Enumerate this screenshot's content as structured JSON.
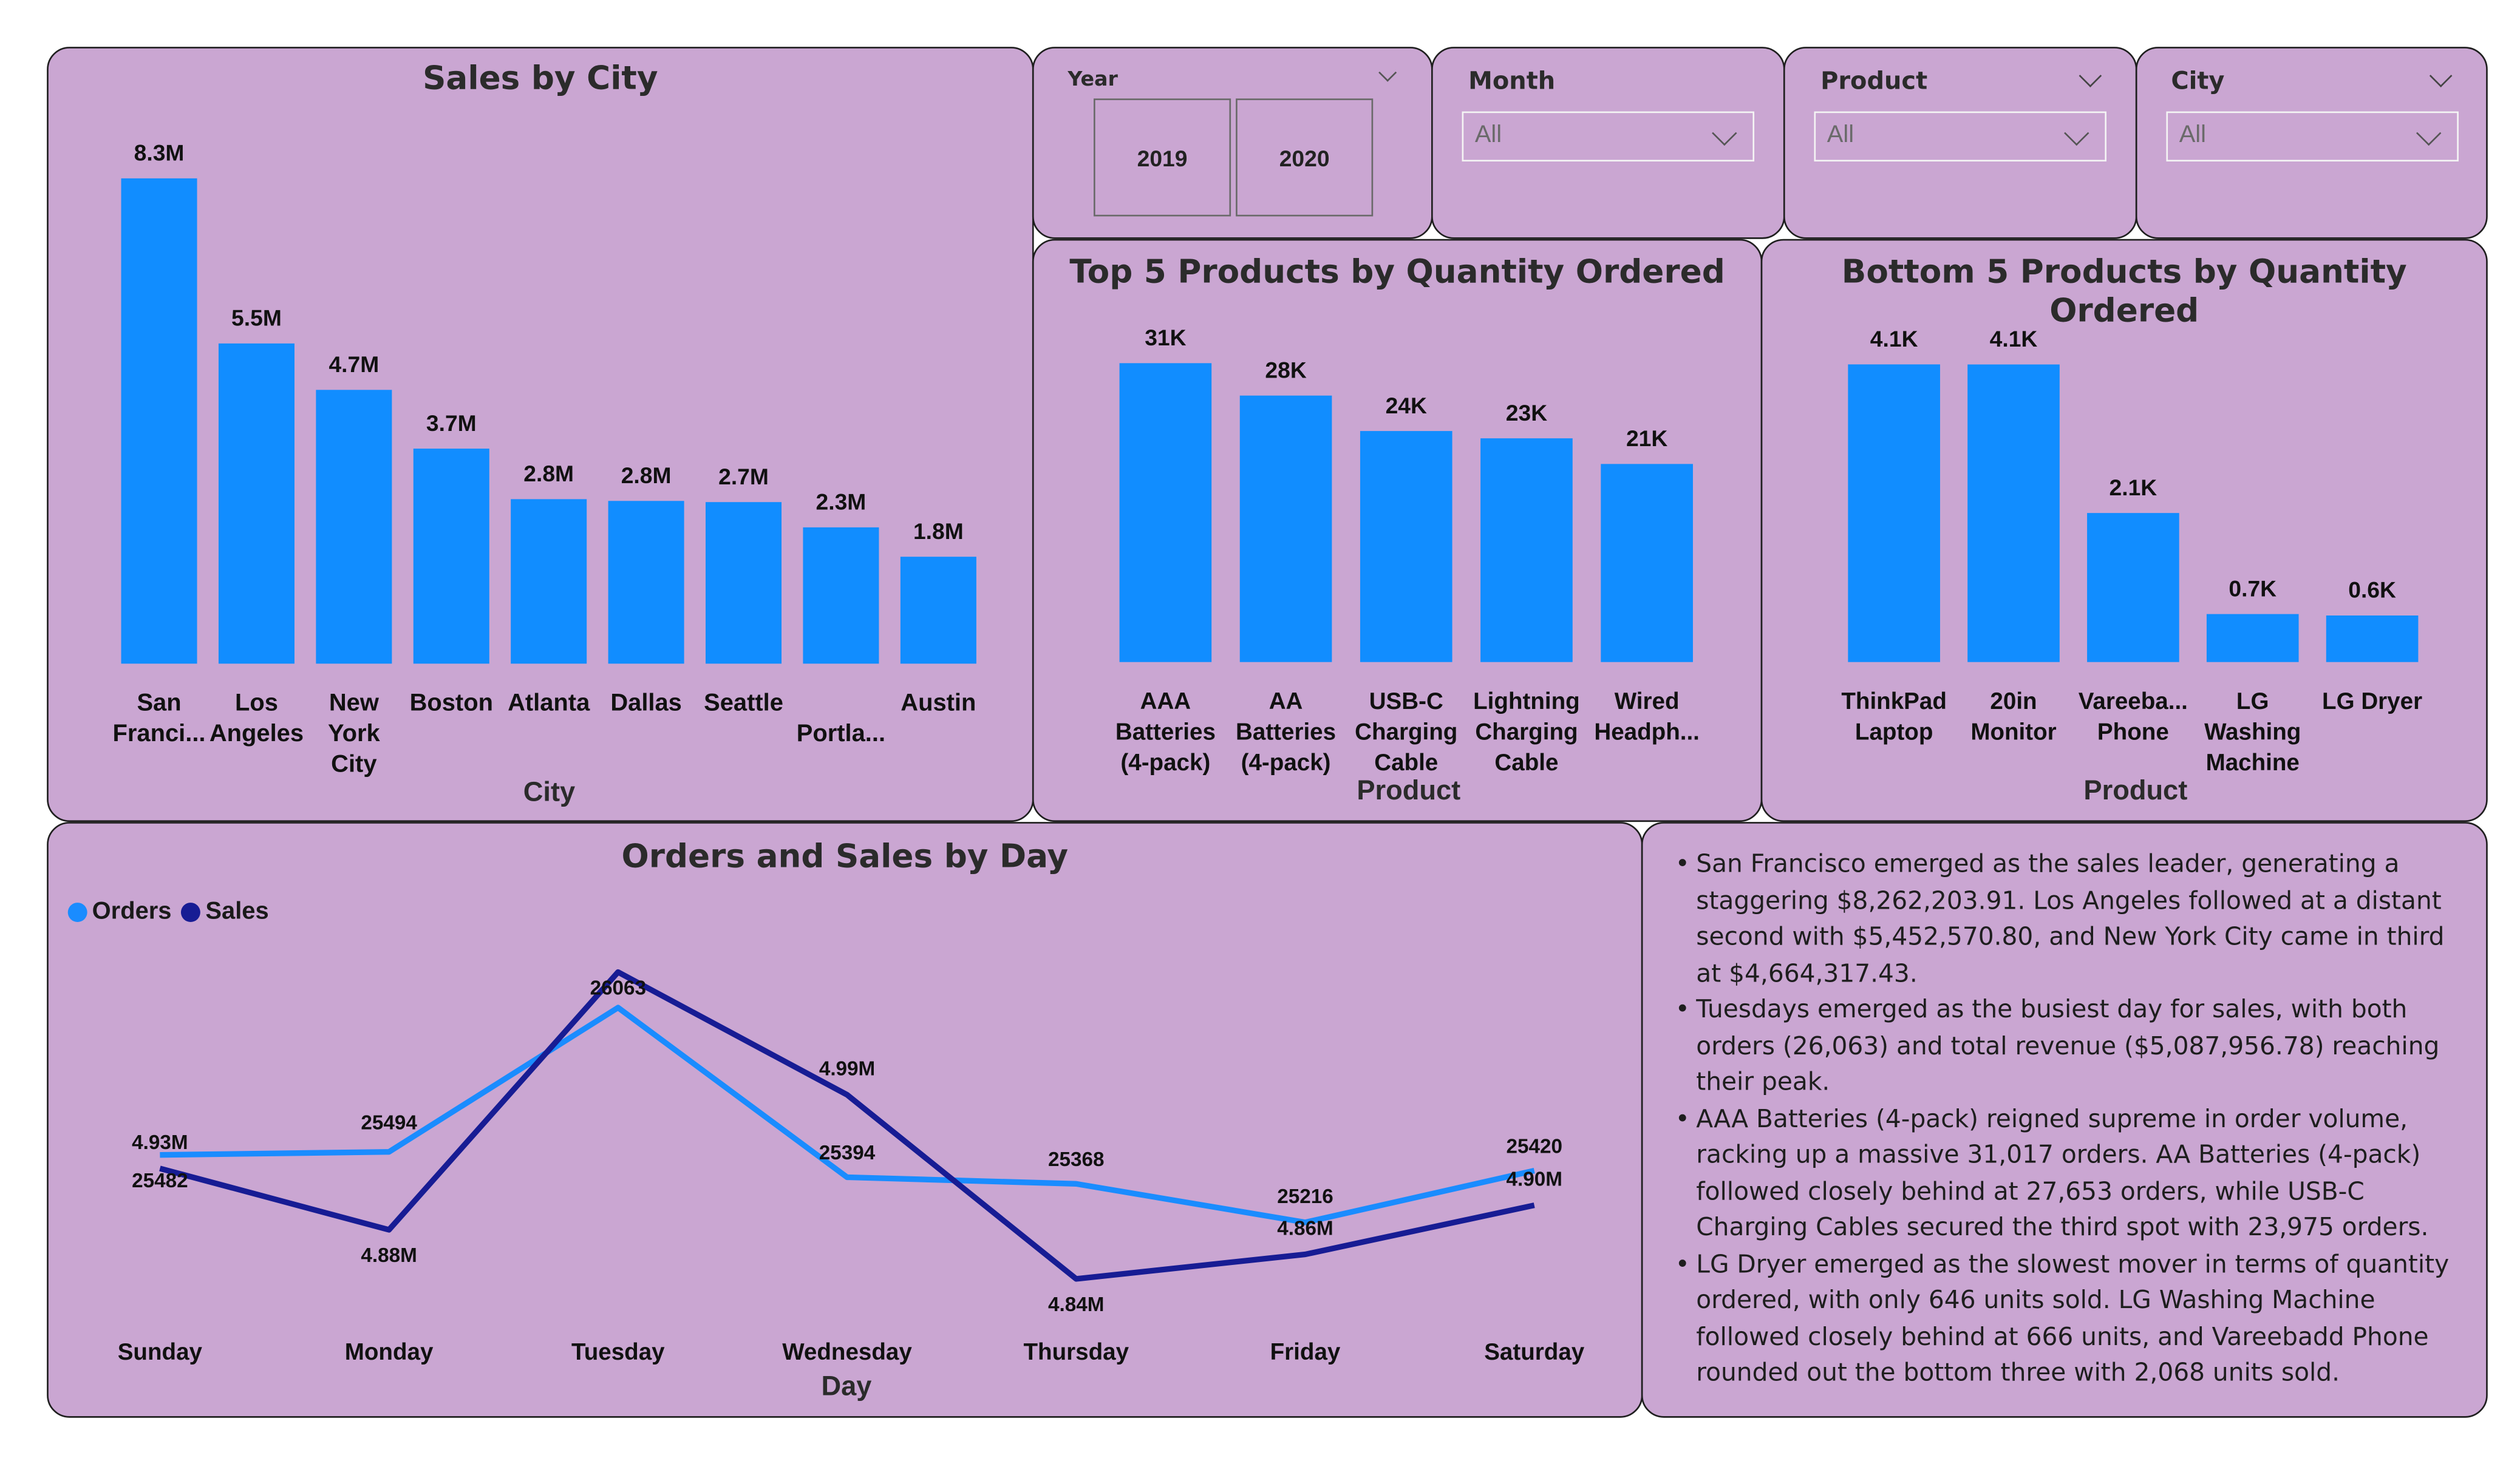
{
  "colors": {
    "bar": "#118dff",
    "orders_line": "#1a8cff",
    "sales_line": "#171c94",
    "panel_bg": "#caa6d2"
  },
  "slicers": {
    "year": {
      "label": "Year",
      "options": [
        "2019",
        "2020"
      ],
      "icon": "chevron-down-icon"
    },
    "month": {
      "label": "Month",
      "value": "All"
    },
    "product": {
      "label": "Product",
      "value": "All"
    },
    "city": {
      "label": "City",
      "value": "All"
    }
  },
  "chart_data": [
    {
      "id": "city",
      "type": "bar",
      "title": "Sales by City",
      "xlabel": "City",
      "ylabel": "",
      "ylim": [
        0,
        8.3
      ],
      "categories": [
        [
          "San",
          "Franci..."
        ],
        [
          "Los",
          "Angeles"
        ],
        [
          "New",
          "York",
          "City"
        ],
        [
          "Boston"
        ],
        [
          "Atlanta"
        ],
        [
          "Dallas"
        ],
        [
          "Seattle"
        ],
        [
          "",
          "Portla..."
        ],
        [
          "Austin"
        ]
      ],
      "values": [
        8.26,
        5.45,
        4.66,
        3.66,
        2.8,
        2.77,
        2.75,
        2.32,
        1.82
      ],
      "data_labels": [
        "8.3M",
        "5.5M",
        "4.7M",
        "3.7M",
        "2.8M",
        "2.8M",
        "2.7M",
        "2.3M",
        "1.8M"
      ]
    },
    {
      "id": "top5",
      "type": "bar",
      "title": "Top 5 Products by Quantity Ordered",
      "xlabel": "Product",
      "ylabel": "",
      "ylim": [
        0,
        31
      ],
      "categories": [
        [
          "AAA",
          "Batteries",
          "(4-pack)"
        ],
        [
          "AA",
          "Batteries",
          "(4-pack)"
        ],
        [
          "USB-C",
          "Charging",
          "Cable"
        ],
        [
          "Lightning",
          "Charging",
          "Cable"
        ],
        [
          "Wired",
          "Headph..."
        ]
      ],
      "values": [
        31017,
        27653,
        23975,
        23217,
        20557
      ],
      "data_labels": [
        "31K",
        "28K",
        "24K",
        "23K",
        "21K"
      ]
    },
    {
      "id": "bottom5",
      "type": "bar",
      "title": "Bottom 5 Products by Quantity Ordered",
      "xlabel": "Product",
      "ylabel": "",
      "ylim": [
        0,
        4.1
      ],
      "categories": [
        [
          "ThinkPad",
          "Laptop"
        ],
        [
          "20in",
          "Monitor"
        ],
        [
          "Vareeba...",
          "Phone"
        ],
        [
          "LG",
          "Washing",
          "Machine"
        ],
        [
          "LG Dryer"
        ]
      ],
      "values": [
        4130,
        4129,
        2068,
        666,
        646
      ],
      "data_labels": [
        "4.1K",
        "4.1K",
        "2.1K",
        "0.7K",
        "0.6K"
      ]
    },
    {
      "id": "day",
      "type": "line",
      "title": "Orders and Sales by Day",
      "xlabel": "Day",
      "x": [
        "Sunday",
        "Monday",
        "Tuesday",
        "Wednesday",
        "Thursday",
        "Friday",
        "Saturday"
      ],
      "series": [
        {
          "name": "Orders",
          "values": [
            25482,
            25494,
            26063,
            25394,
            25368,
            25216,
            25420
          ],
          "data_labels": [
            "25482",
            "25494",
            "26063",
            "25394",
            "25368",
            "25216",
            "25420"
          ]
        },
        {
          "name": "Sales",
          "values": [
            4.93,
            4.88,
            5.09,
            4.99,
            4.84,
            4.86,
            4.9
          ],
          "data_labels": [
            "4.93M",
            "4.88M",
            "",
            "4.99M",
            "4.84M",
            "4.86M",
            "4.90M"
          ]
        }
      ]
    }
  ],
  "notes": [
    "San Francisco emerged as the sales leader, generating a staggering $8,262,203.91. Los Angeles followed at a distant second with $5,452,570.80, and New York City came in third at $4,664,317.43.",
    "Tuesdays emerged as the busiest day for sales, with both orders (26,063) and total revenue ($5,087,956.78) reaching their peak.",
    "AAA Batteries (4-pack) reigned supreme in order volume, racking up a massive 31,017 orders. AA Batteries (4-pack) followed closely behind at 27,653 orders, while USB-C Charging Cables secured the third spot with 23,975 orders.",
    "LG Dryer emerged as the slowest mover in terms of quantity ordered, with only 646 units sold. LG Washing Machine followed closely behind at 666 units, and Vareebadd Phone rounded out the bottom three with 2,068 units sold."
  ]
}
